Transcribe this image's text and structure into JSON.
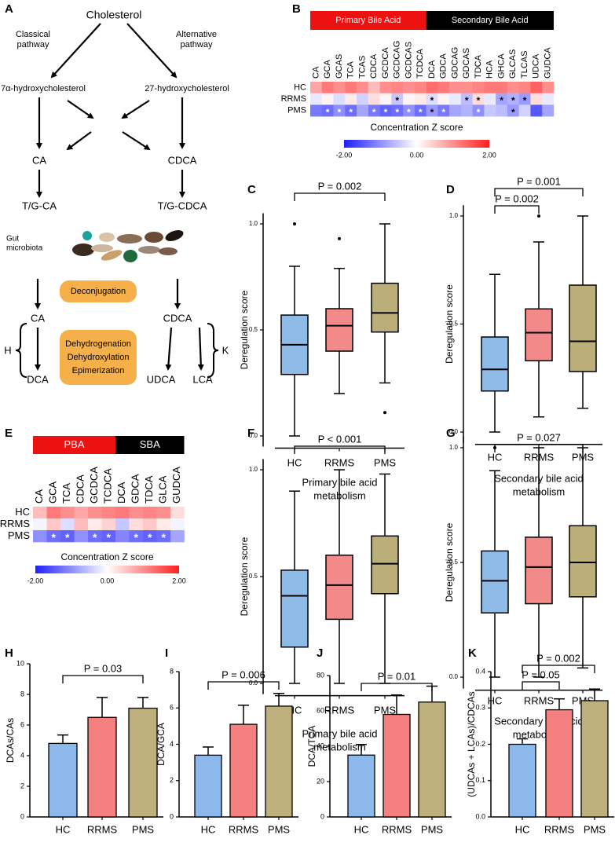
{
  "diagram": {
    "panel": "A",
    "cholesterol": "Cholesterol",
    "classical": [
      "Classical",
      "pathway"
    ],
    "alternative": [
      "Alternative",
      "pathway"
    ],
    "left_precursor": "7α-hydroxycholesterol",
    "right_precursor": "27-hydroxycholesterol",
    "primary": [
      "CA",
      "CDCA"
    ],
    "conjugated": [
      "T/G-CA",
      "T/G-CDCA"
    ],
    "microbiota": [
      "Gut",
      "microbiota"
    ],
    "deconjugation": "Deconjugation",
    "deconjugated": [
      "CA",
      "CDCA"
    ],
    "transformations": [
      "Dehydrogenation",
      "Dehydroxylation",
      "Epimerization"
    ],
    "braces": [
      "H",
      "K"
    ],
    "secondary": [
      "DCA",
      "UDCA",
      "LCA"
    ]
  },
  "chart_data": [
    {
      "type": "heatmap",
      "panel": "B",
      "groups": [
        {
          "name": "Primary Bile Acid",
          "color": "#ee1111",
          "columns": [
            "CA",
            "GCA",
            "GCAS",
            "TCA",
            "TCAS",
            "CDCA",
            "GCDCA",
            "GCDCAG",
            "GCDCAS",
            "TCDCA"
          ]
        },
        {
          "name": "Secondary Bile Acid",
          "color": "#000000",
          "columns": [
            "DCA",
            "GDCA",
            "GDCAG",
            "GDCAS",
            "TDCA",
            "HCA",
            "GHCA",
            "GLCAS",
            "TLCAS",
            "UDCA",
            "GUDCA"
          ]
        }
      ],
      "series": [
        {
          "name": "HC",
          "values": [
            0.8,
            1.2,
            1.0,
            1.2,
            1.0,
            0.6,
            1.0,
            1.1,
            1.0,
            1.1,
            1.3,
            1.2,
            1.0,
            1.0,
            1.1,
            1.2,
            1.2,
            1.0,
            1.1,
            1.4,
            1.0
          ],
          "significant": [
            false,
            false,
            false,
            false,
            false,
            false,
            false,
            false,
            false,
            false,
            false,
            false,
            false,
            false,
            false,
            false,
            false,
            false,
            false,
            false,
            false
          ]
        },
        {
          "name": "RRMS",
          "values": [
            -0.2,
            0.1,
            -0.3,
            0.2,
            -0.4,
            0.3,
            0.1,
            -0.5,
            0.1,
            0.2,
            -0.3,
            0.1,
            -0.2,
            -0.6,
            0.3,
            -0.2,
            -0.8,
            -0.7,
            -0.9,
            0.3,
            -0.2
          ],
          "significant": [
            false,
            false,
            false,
            false,
            false,
            false,
            false,
            true,
            false,
            false,
            true,
            false,
            false,
            true,
            true,
            false,
            true,
            true,
            true,
            false,
            false
          ]
        },
        {
          "name": "PMS",
          "values": [
            -1.2,
            -1.3,
            -1.0,
            -1.3,
            -0.8,
            -1.2,
            -1.4,
            -1.3,
            -1.0,
            -1.3,
            -0.9,
            -1.2,
            -0.8,
            -0.7,
            -1.0,
            -0.5,
            -0.6,
            -0.9,
            -0.4,
            -1.5,
            -0.8
          ],
          "significant": [
            false,
            true,
            true,
            true,
            false,
            true,
            true,
            true,
            true,
            true,
            true,
            true,
            false,
            false,
            true,
            false,
            false,
            true,
            false,
            false,
            false
          ]
        }
      ],
      "marker": "*",
      "colormap": [
        "#1f1fff",
        "#ffffff",
        "#ff1f1f"
      ],
      "zlim": [
        -2,
        2
      ],
      "zticks": [
        {
          "value": -2,
          "label": "-2.00"
        },
        {
          "value": 0,
          "label": "0.00"
        },
        {
          "value": 2,
          "label": "2.00"
        }
      ],
      "colorbar_label": "Concentration Z score"
    },
    {
      "type": "box",
      "panel": "C",
      "categories": [
        "HC",
        "RRMS",
        "PMS"
      ],
      "colors": [
        "#8fbbe8",
        "#f28a8a",
        "#bcae78"
      ],
      "boxes": [
        {
          "whislo": 0.0,
          "q1": 0.29,
          "med": 0.43,
          "q3": 0.57,
          "whishi": 0.8,
          "fliers": [
            1.0
          ]
        },
        {
          "whislo": 0.2,
          "q1": 0.4,
          "med": 0.52,
          "q3": 0.6,
          "whishi": 0.79,
          "fliers": [
            0.93
          ]
        },
        {
          "whislo": 0.25,
          "q1": 0.49,
          "med": 0.58,
          "q3": 0.72,
          "whishi": 1.0,
          "fliers": [
            0.11
          ]
        }
      ],
      "ylim": [
        -0.05,
        1.05
      ],
      "yticks": [
        {
          "value": 0,
          "label": "0.0"
        },
        {
          "value": 0.5,
          "label": "0.5"
        },
        {
          "value": 1,
          "label": "1.0"
        }
      ],
      "ylabel": "Deregulation score",
      "xlabel": [
        "Primary bile acid",
        "metabolism"
      ],
      "comparisons": [
        {
          "pair": [
            "HC",
            "PMS"
          ],
          "label": "P = 0.002"
        }
      ]
    },
    {
      "type": "box",
      "panel": "D",
      "categories": [
        "HC",
        "RRMS",
        "PMS"
      ],
      "colors": [
        "#8fbbe8",
        "#f28a8a",
        "#bcae78"
      ],
      "boxes": [
        {
          "whislo": 0.0,
          "q1": 0.19,
          "med": 0.29,
          "q3": 0.44,
          "whishi": 0.73
        },
        {
          "whislo": 0.07,
          "q1": 0.33,
          "med": 0.46,
          "q3": 0.57,
          "whishi": 0.88,
          "fliers": [
            1.0
          ]
        },
        {
          "whislo": 0.11,
          "q1": 0.28,
          "med": 0.42,
          "q3": 0.68,
          "whishi": 1.0
        }
      ],
      "ylim": [
        -0.05,
        1.05
      ],
      "yticks": [
        {
          "value": 0,
          "label": "0.0"
        },
        {
          "value": 0.5,
          "label": "0.5"
        },
        {
          "value": 1,
          "label": "1.0"
        }
      ],
      "ylabel": "Deregulation score",
      "xlabel": [
        "Secondary bile acid",
        "metabolism"
      ],
      "comparisons": [
        {
          "pair": [
            "HC",
            "RRMS"
          ],
          "label": "P = 0.002"
        },
        {
          "pair": [
            "HC",
            "PMS"
          ],
          "label": "P = 0.001"
        }
      ]
    },
    {
      "type": "heatmap",
      "panel": "E",
      "groups": [
        {
          "name": "PBA",
          "color": "#ee1111",
          "columns": [
            "CA",
            "GCA",
            "TCA",
            "CDCA",
            "GCDCA",
            "TCDCA"
          ]
        },
        {
          "name": "SBA",
          "color": "#000000",
          "columns": [
            "DCA",
            "GDCA",
            "TDCA",
            "GLCA",
            "GUDCA"
          ]
        }
      ],
      "series": [
        {
          "name": "HC",
          "values": [
            0.6,
            1.2,
            1.0,
            0.8,
            1.0,
            1.1,
            1.2,
            1.0,
            1.1,
            1.0,
            0.3
          ],
          "significant": [
            false,
            false,
            false,
            false,
            false,
            false,
            false,
            false,
            false,
            false,
            false
          ]
        },
        {
          "name": "RRMS",
          "values": [
            -0.1,
            0.5,
            -0.3,
            0.6,
            0.2,
            0.4,
            -0.5,
            0.3,
            0.5,
            0.2,
            -0.1
          ],
          "significant": [
            false,
            false,
            false,
            false,
            false,
            false,
            false,
            false,
            false,
            false,
            false
          ]
        },
        {
          "name": "PMS",
          "values": [
            -1.0,
            -1.3,
            -1.4,
            -1.0,
            -1.3,
            -1.4,
            -1.1,
            -1.3,
            -1.4,
            -1.3,
            -0.8
          ],
          "significant": [
            false,
            true,
            true,
            false,
            true,
            true,
            false,
            true,
            true,
            true,
            false
          ]
        }
      ],
      "marker": "*",
      "colormap": [
        "#1f1fff",
        "#ffffff",
        "#ff1f1f"
      ],
      "zlim": [
        -2,
        2
      ],
      "zticks": [
        {
          "value": -2,
          "label": "-2.00"
        },
        {
          "value": 0,
          "label": "0.00"
        },
        {
          "value": 2,
          "label": "2.00"
        }
      ],
      "colorbar_label": "Concentration Z score"
    },
    {
      "type": "box",
      "panel": "F",
      "categories": [
        "HC",
        "RRMS",
        "PMS"
      ],
      "colors": [
        "#8fbbe8",
        "#f28a8a",
        "#bcae78"
      ],
      "boxes": [
        {
          "whislo": 0.0,
          "q1": 0.17,
          "med": 0.41,
          "q3": 0.53,
          "whishi": 0.9
        },
        {
          "whislo": 0.0,
          "q1": 0.3,
          "med": 0.46,
          "q3": 0.6,
          "whishi": 1.0
        },
        {
          "whislo": 0.0,
          "q1": 0.42,
          "med": 0.56,
          "q3": 0.69,
          "whishi": 0.98
        }
      ],
      "ylim": [
        -0.05,
        1.05
      ],
      "yticks": [
        {
          "value": 0,
          "label": "0.0"
        },
        {
          "value": 0.5,
          "label": "0.5"
        },
        {
          "value": 1,
          "label": "1.0"
        }
      ],
      "ylabel": "Deregulation score",
      "xlabel": [
        "Primary bile acid",
        "metabolism"
      ],
      "comparisons": [
        {
          "pair": [
            "HC",
            "PMS"
          ],
          "label": "P < 0.001"
        }
      ]
    },
    {
      "type": "box",
      "panel": "G",
      "categories": [
        "HC",
        "RRMS",
        "PMS"
      ],
      "colors": [
        "#8fbbe8",
        "#f28a8a",
        "#bcae78"
      ],
      "boxes": [
        {
          "whislo": 0.0,
          "q1": 0.28,
          "med": 0.42,
          "q3": 0.55,
          "whishi": 0.9,
          "fliers": [
            1.0
          ]
        },
        {
          "whislo": 0.0,
          "q1": 0.32,
          "med": 0.48,
          "q3": 0.61,
          "whishi": 1.0
        },
        {
          "whislo": 0.04,
          "q1": 0.35,
          "med": 0.5,
          "q3": 0.66,
          "whishi": 1.0
        }
      ],
      "ylim": [
        -0.05,
        1.05
      ],
      "yticks": [
        {
          "value": 0,
          "label": "0.0"
        },
        {
          "value": 0.5,
          "label": "0.5"
        },
        {
          "value": 1,
          "label": "1.0"
        }
      ],
      "ylabel": "Deregulation score",
      "xlabel": [
        "Secondary bile acid",
        "metabolism"
      ],
      "comparisons": [
        {
          "pair": [
            "HC",
            "PMS"
          ],
          "label": "P = 0.027"
        }
      ]
    },
    {
      "type": "bar",
      "panel": "H",
      "categories": [
        "HC",
        "RRMS",
        "PMS"
      ],
      "colors": [
        "#8db8ec",
        "#f48080",
        "#bdb07c"
      ],
      "values": [
        4.8,
        6.5,
        7.1
      ],
      "errors": [
        0.55,
        1.3,
        0.7
      ],
      "ylim": [
        0,
        10
      ],
      "yticks": [
        0,
        2,
        4,
        6,
        8,
        10
      ],
      "ylabel": "DCAs/CAs",
      "comparisons": [
        {
          "pair": [
            "HC",
            "PMS"
          ],
          "label": "P = 0.03"
        }
      ]
    },
    {
      "type": "bar",
      "panel": "I",
      "categories": [
        "HC",
        "RRMS",
        "PMS"
      ],
      "colors": [
        "#8db8ec",
        "#f48080",
        "#bdb07c"
      ],
      "values": [
        3.4,
        5.1,
        6.1
      ],
      "errors": [
        0.45,
        1.05,
        0.7
      ],
      "ylim": [
        0,
        8
      ],
      "yticks": [
        0,
        2,
        4,
        6,
        8
      ],
      "ylabel": "DCA/GCA",
      "comparisons": [
        {
          "pair": [
            "HC",
            "PMS"
          ],
          "label": "P = 0.006"
        }
      ]
    },
    {
      "type": "bar",
      "panel": "J",
      "categories": [
        "HC",
        "RRMS",
        "PMS"
      ],
      "colors": [
        "#8db8ec",
        "#f48080",
        "#bdb07c"
      ],
      "values": [
        35,
        58,
        65
      ],
      "errors": [
        6,
        11,
        9
      ],
      "ylim": [
        0,
        80
      ],
      "yticks": [
        0,
        20,
        40,
        60,
        80
      ],
      "ylabel": "DCA/TCA",
      "comparisons": [
        {
          "pair": [
            "HC",
            "PMS"
          ],
          "label": "P = 0.01"
        }
      ]
    },
    {
      "type": "bar",
      "panel": "K",
      "categories": [
        "HC",
        "RRMS",
        "PMS"
      ],
      "colors": [
        "#8db8ec",
        "#f48080",
        "#bdb07c"
      ],
      "values": [
        0.2,
        0.295,
        0.32
      ],
      "errors": [
        0.015,
        0.03,
        0.032
      ],
      "ylim": [
        0,
        0.4
      ],
      "yticks": [
        {
          "value": 0,
          "label": "0.0"
        },
        {
          "value": 0.1,
          "label": "0.1"
        },
        {
          "value": 0.2,
          "label": "0.2"
        },
        {
          "value": 0.3,
          "label": "0.3"
        },
        {
          "value": 0.4,
          "label": "0.4"
        }
      ],
      "ylabel": "(UDCAs + LCAs)/CDCAs",
      "comparisons": [
        {
          "pair": [
            "HC",
            "RRMS"
          ],
          "label": "P = 0.05"
        },
        {
          "pair": [
            "HC",
            "PMS"
          ],
          "label": "P = 0.002"
        }
      ]
    }
  ]
}
